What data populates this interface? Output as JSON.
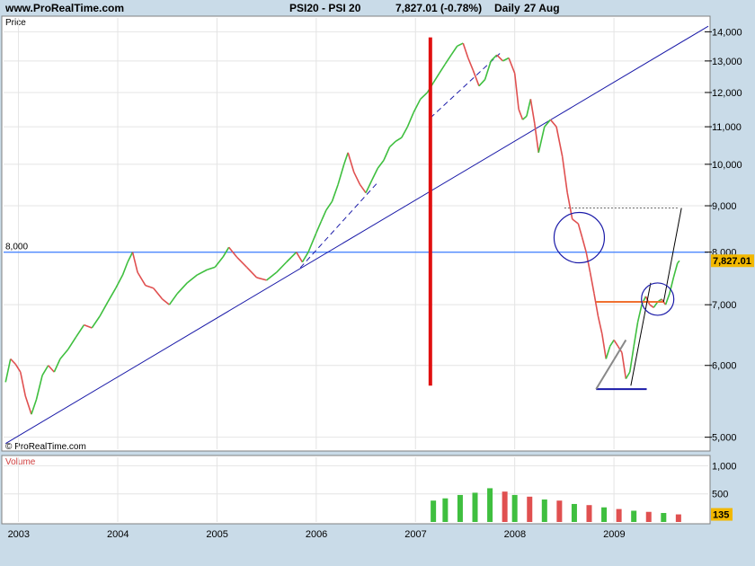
{
  "header": {
    "site": "www.ProRealTime.com",
    "symbol": "PSI20 - PSI 20",
    "quote": "7,827.01 (-0.78%)",
    "period": "Daily",
    "date": "27 Aug"
  },
  "panels": {
    "price_label": "Price",
    "volume_label": "Volume",
    "watermark": "© ProRealTime.com"
  },
  "colors": {
    "up": "#3fbf3f",
    "down": "#e05050",
    "hline": "#4d88ff",
    "trend": "#1a1aa8",
    "vline": "#e01010",
    "support": "#1a1aa8",
    "resistance": "#f07030",
    "last_badge": "#f2b800"
  },
  "chart_data": [
    {
      "type": "line",
      "title": "PSI20 - PSI 20",
      "ylabel": "Price",
      "yscale": "log",
      "ylim": [
        4850,
        14500
      ],
      "xlim": [
        2002.85,
        2009.95
      ],
      "y_ticks": [
        5000,
        6000,
        7000,
        8000,
        9000,
        10000,
        11000,
        12000,
        13000,
        14000
      ],
      "y_tick_labels": [
        "5,000",
        "6,000",
        "7,000",
        "8,000",
        "9,000",
        "10,000",
        "11,000",
        "12,000",
        "13,000",
        "14,000"
      ],
      "x_ticks": [
        2003,
        2004,
        2005,
        2006,
        2007,
        2008,
        2009
      ],
      "x_tick_labels": [
        "2003",
        "2004",
        "2005",
        "2006",
        "2007",
        "2008",
        "2009"
      ],
      "series": [
        {
          "x": [
            2002.87,
            2002.92,
            2002.97,
            2003.02,
            2003.07,
            2003.13,
            2003.18,
            2003.24,
            2003.3,
            2003.36,
            2003.42,
            2003.5,
            2003.58,
            2003.66,
            2003.74,
            2003.82,
            2003.9,
            2003.98,
            2004.05,
            2004.1,
            2004.15,
            2004.2,
            2004.28,
            2004.36,
            2004.45,
            2004.52,
            2004.6,
            2004.7,
            2004.8,
            2004.9,
            2004.98,
            2005.06,
            2005.12,
            2005.2,
            2005.3,
            2005.4,
            2005.5,
            2005.6,
            2005.7,
            2005.8,
            2005.86,
            2005.92,
            2006.0,
            2006.05,
            2006.1,
            2006.16,
            2006.22,
            2006.28,
            2006.32,
            2006.38,
            2006.44,
            2006.5,
            2006.56,
            2006.62,
            2006.68,
            2006.74,
            2006.8,
            2006.86,
            2006.92,
            2006.98,
            2007.05,
            2007.12,
            2007.18,
            2007.24,
            2007.3,
            2007.36,
            2007.42,
            2007.48,
            2007.53,
            2007.58,
            2007.64,
            2007.7,
            2007.76,
            2007.82,
            2007.88,
            2007.94,
            2008.0,
            2008.04,
            2008.08,
            2008.12,
            2008.16,
            2008.2,
            2008.24,
            2008.3,
            2008.36,
            2008.42,
            2008.48,
            2008.53,
            2008.58,
            2008.64,
            2008.68,
            2008.72,
            2008.76,
            2008.8,
            2008.84,
            2008.88,
            2008.92,
            2008.96,
            2009.0,
            2009.04,
            2009.08,
            2009.12,
            2009.16,
            2009.2,
            2009.24,
            2009.28,
            2009.32,
            2009.36,
            2009.4,
            2009.44,
            2009.48,
            2009.52,
            2009.56,
            2009.6,
            2009.64,
            2009.66
          ],
          "y": [
            5750,
            6100,
            6020,
            5900,
            5550,
            5300,
            5500,
            5850,
            6000,
            5900,
            6100,
            6250,
            6450,
            6650,
            6600,
            6800,
            7050,
            7300,
            7550,
            7800,
            8000,
            7600,
            7350,
            7300,
            7100,
            7000,
            7200,
            7400,
            7550,
            7650,
            7700,
            7900,
            8100,
            7900,
            7700,
            7500,
            7450,
            7600,
            7800,
            8000,
            7800,
            8000,
            8400,
            8650,
            8900,
            9100,
            9500,
            10000,
            10300,
            9800,
            9500,
            9300,
            9600,
            9900,
            10100,
            10450,
            10600,
            10700,
            11000,
            11400,
            11800,
            12000,
            12300,
            12600,
            12900,
            13200,
            13500,
            13600,
            13100,
            12700,
            12200,
            12400,
            13000,
            13200,
            13000,
            13100,
            12600,
            11500,
            11200,
            11300,
            11800,
            11100,
            10300,
            11000,
            11200,
            11000,
            10200,
            9300,
            8700,
            8600,
            8300,
            8000,
            7600,
            7200,
            6800,
            6500,
            6100,
            6300,
            6400,
            6300,
            6200,
            5800,
            5900,
            6300,
            6700,
            7000,
            7150,
            7000,
            6950,
            7050,
            7100,
            7000,
            7200,
            7500,
            7780,
            7827
          ]
        }
      ],
      "annotations": {
        "horizontal_line": {
          "y": 8000,
          "label": "8,000"
        },
        "last_value": {
          "y": 7827.01,
          "label": "7,827.01"
        },
        "long_trendline": {
          "x": [
            2002.87,
            2009.95
          ],
          "y": [
            4920,
            14200
          ]
        },
        "dashed_trendline_1": {
          "x": [
            2005.84,
            2006.62
          ],
          "y": [
            7690,
            9550
          ]
        },
        "dashed_trendline_2": {
          "x": [
            2007.15,
            2007.85
          ],
          "y": [
            11250,
            13250
          ]
        },
        "vertical_marker": {
          "x": 2007.15,
          "y": [
            5700,
            13800
          ]
        },
        "upper_dotted_level": {
          "x": [
            2008.5,
            2009.66
          ],
          "y": [
            8950,
            8950
          ]
        },
        "support_line": {
          "x": [
            2008.82,
            2009.33
          ],
          "y": [
            5650,
            5650
          ]
        },
        "resistance_line": {
          "x": [
            2008.82,
            2009.5
          ],
          "y": [
            7050,
            7050
          ]
        },
        "circle_1": {
          "x": 2008.65,
          "y": 8300
        },
        "circle_2": {
          "x": 2009.44,
          "y": 7100
        },
        "rising_line_1": {
          "x": [
            2008.82,
            2009.12
          ],
          "y": [
            5650,
            6400
          ]
        },
        "rising_line_2": {
          "x": [
            2009.17,
            2009.37
          ],
          "y": [
            5700,
            7400
          ]
        },
        "rising_line_3": {
          "x": [
            2009.5,
            2009.68
          ],
          "y": [
            7050,
            8950
          ]
        }
      }
    },
    {
      "type": "bar",
      "title": "Volume",
      "ylim": [
        0,
        1150
      ],
      "y_ticks": [
        500,
        1000
      ],
      "y_tick_labels": [
        "500",
        "1,000"
      ],
      "last_value": {
        "y": 135,
        "label": "135"
      },
      "x": [
        2007.18,
        2007.3,
        2007.45,
        2007.6,
        2007.75,
        2007.9,
        2008.0,
        2008.15,
        2008.3,
        2008.45,
        2008.6,
        2008.75,
        2008.9,
        2009.05,
        2009.2,
        2009.35,
        2009.5,
        2009.65
      ],
      "values": [
        380,
        420,
        480,
        520,
        600,
        540,
        480,
        450,
        400,
        380,
        320,
        300,
        260,
        230,
        200,
        180,
        160,
        135
      ]
    }
  ]
}
